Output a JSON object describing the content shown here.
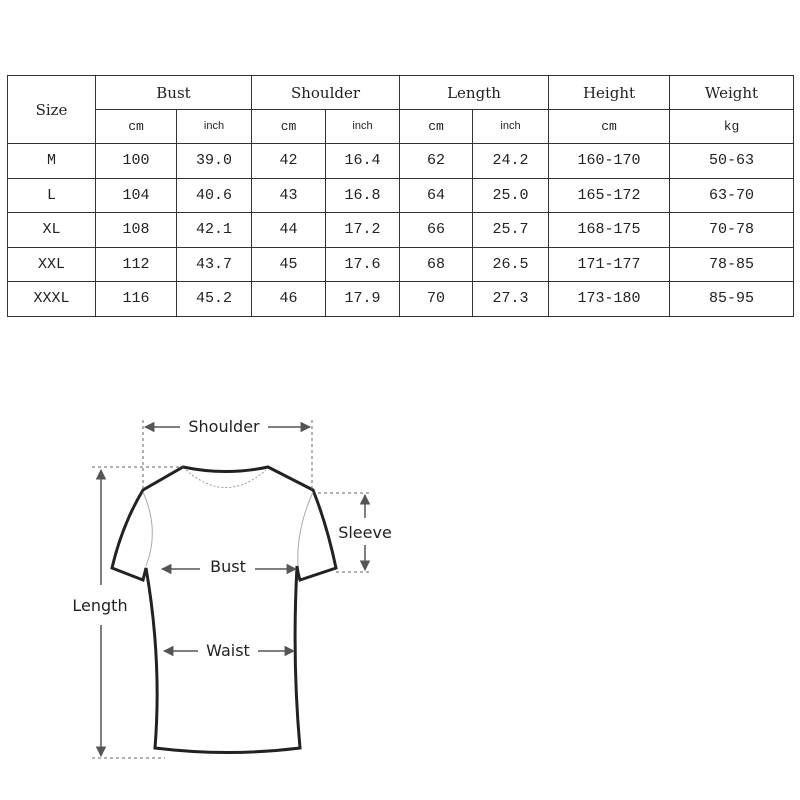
{
  "table": {
    "size_header": "Size",
    "groups": [
      {
        "label": "Bust",
        "units": [
          "cm",
          "inch"
        ]
      },
      {
        "label": "Shoulder",
        "units": [
          "cm",
          "inch"
        ]
      },
      {
        "label": "Length",
        "units": [
          "cm",
          "inch"
        ]
      },
      {
        "label": "Height",
        "units": [
          "cm"
        ]
      },
      {
        "label": "Weight",
        "units": [
          "kg"
        ]
      }
    ],
    "rows": [
      [
        "M",
        "100",
        "39.0",
        "42",
        "16.4",
        "62",
        "24.2",
        "160-170",
        "50-63"
      ],
      [
        "L",
        "104",
        "40.6",
        "43",
        "16.8",
        "64",
        "25.0",
        "165-172",
        "63-70"
      ],
      [
        "XL",
        "108",
        "42.1",
        "44",
        "17.2",
        "66",
        "25.7",
        "168-175",
        "70-78"
      ],
      [
        "XXL",
        "112",
        "43.7",
        "45",
        "17.6",
        "68",
        "26.5",
        "171-177",
        "78-85"
      ],
      [
        "XXXL",
        "116",
        "45.2",
        "46",
        "17.9",
        "70",
        "27.3",
        "173-180",
        "85-95"
      ]
    ]
  },
  "diagram": {
    "shoulder": "Shoulder",
    "sleeve": "Sleeve",
    "bust": "Bust",
    "length": "Length",
    "waist": "Waist"
  }
}
